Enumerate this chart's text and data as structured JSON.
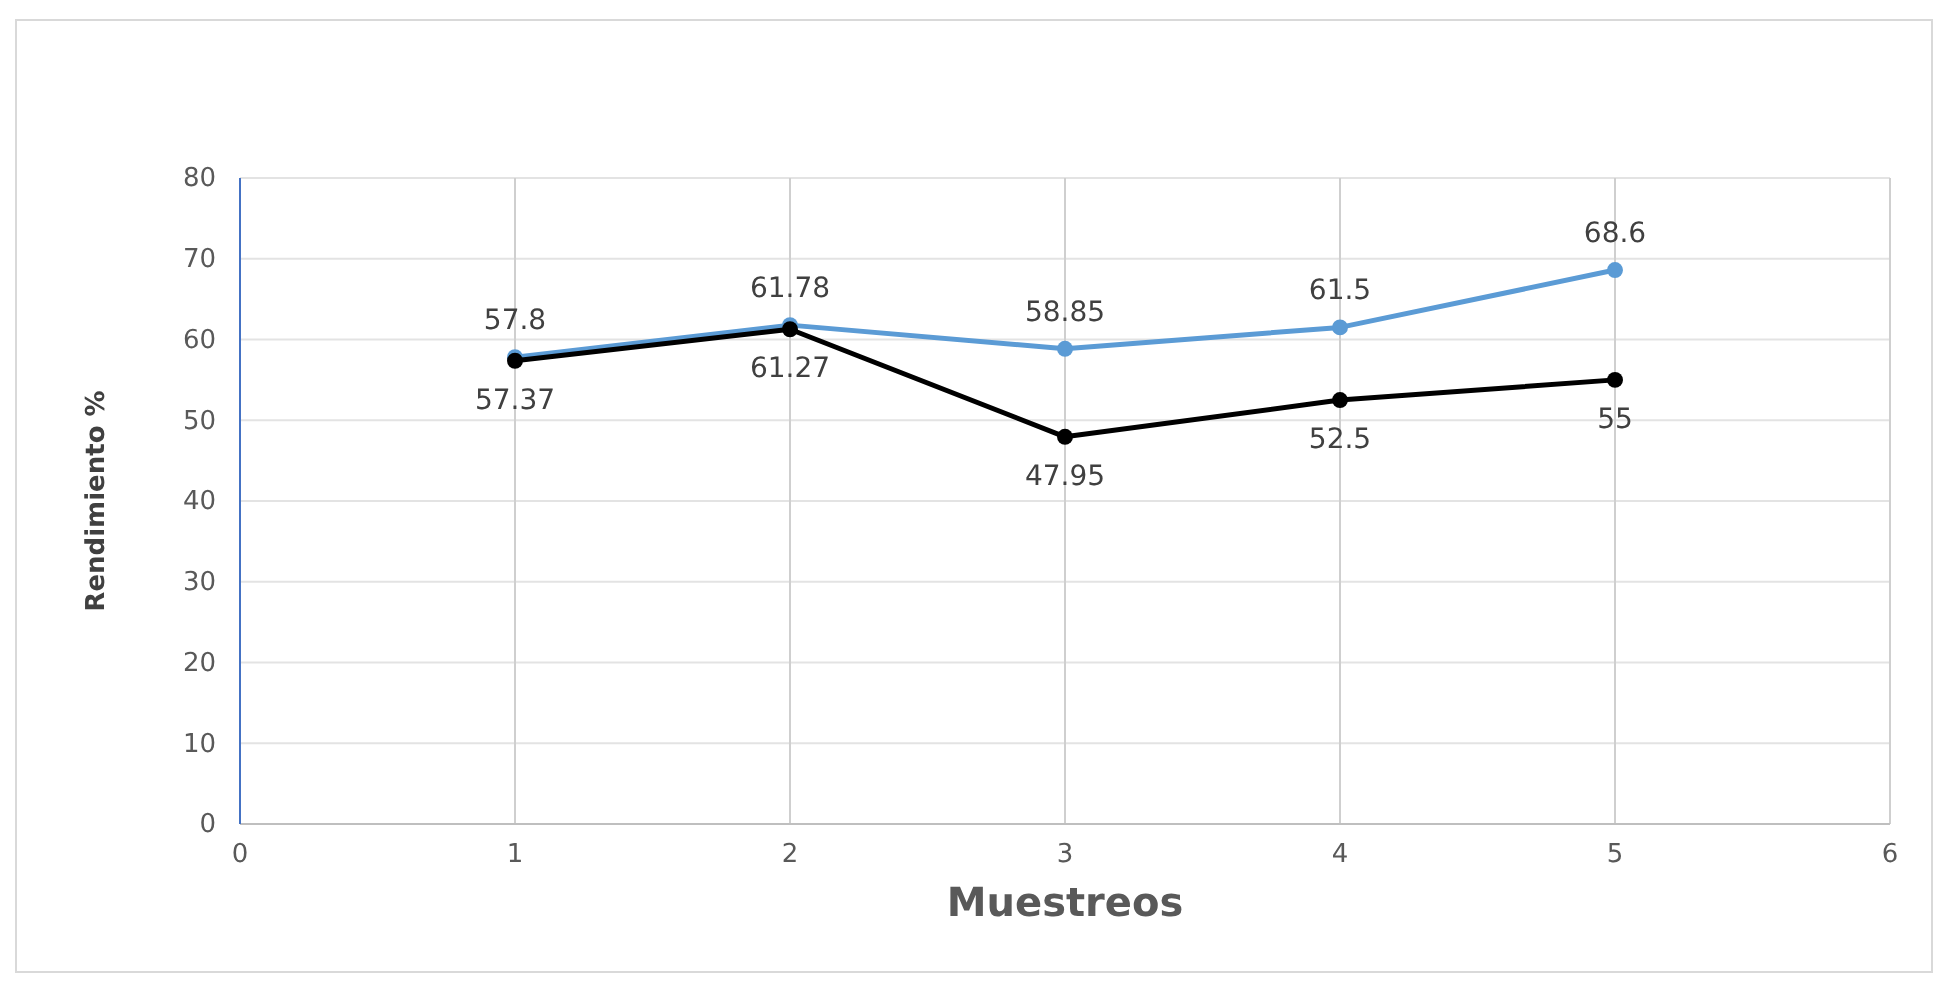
{
  "chart_data": {
    "type": "line",
    "xlabel": "Muestreos",
    "ylabel": "Rendimiento %",
    "x": [
      1,
      2,
      3,
      4,
      5
    ],
    "series": [
      {
        "color": "#5b9bd5",
        "values": [
          57.8,
          61.78,
          58.85,
          61.5,
          68.6
        ]
      },
      {
        "color": "#000000",
        "values": [
          57.37,
          61.27,
          47.95,
          52.5,
          55
        ]
      }
    ],
    "xlim": [
      0,
      6
    ],
    "xticks": [
      0,
      1,
      2,
      3,
      4,
      5,
      6
    ],
    "ylim": [
      0,
      80
    ],
    "yticks": [
      0,
      10,
      20,
      30,
      40,
      50,
      60,
      70,
      80
    ],
    "grid": true,
    "marker": "circle",
    "line_style": "solid",
    "data_labels": true
  }
}
